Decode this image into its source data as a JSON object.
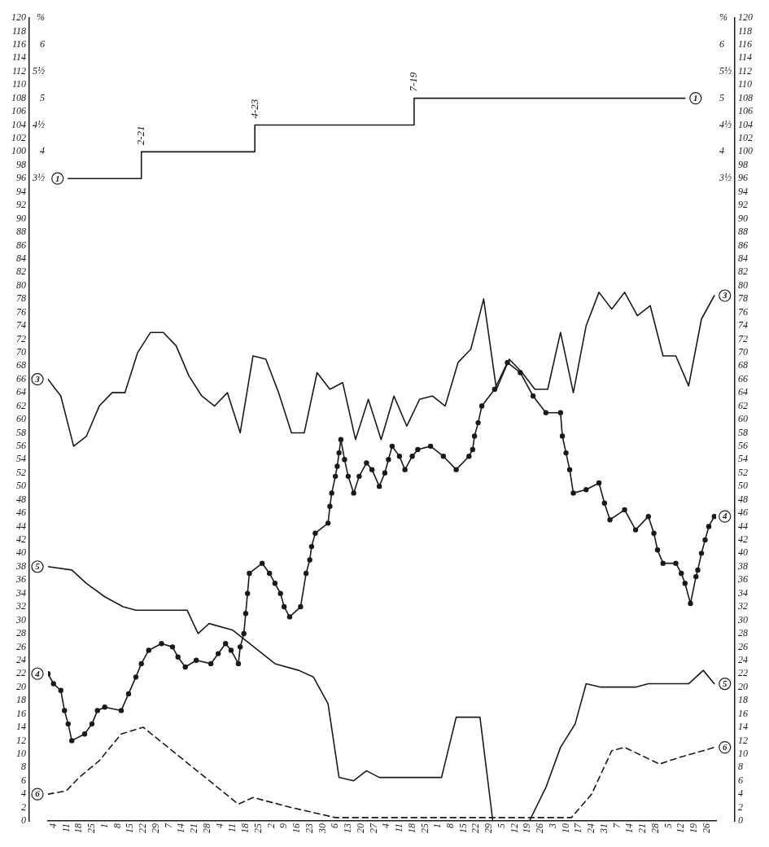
{
  "chart_data": {
    "type": "line",
    "xlim": [
      "--01-01",
      "--12-31"
    ],
    "xticks": [
      {
        "value": "--01-04",
        "label": "4"
      },
      {
        "value": "--01-11",
        "label": "11"
      },
      {
        "value": "--01-18",
        "label": "18"
      },
      {
        "value": "--01-25",
        "label": "25"
      },
      {
        "value": "--02-01",
        "label": "1"
      },
      {
        "value": "--02-08",
        "label": "8"
      },
      {
        "value": "--02-15",
        "label": "15"
      },
      {
        "value": "--02-22",
        "label": "22"
      },
      {
        "value": "--02-29",
        "label": "29"
      },
      {
        "value": "--03-07",
        "label": "7"
      },
      {
        "value": "--03-14",
        "label": "14"
      },
      {
        "value": "--03-21",
        "label": "21"
      },
      {
        "value": "--03-28",
        "label": "28"
      },
      {
        "value": "--04-04",
        "label": "4"
      },
      {
        "value": "--04-11",
        "label": "11"
      },
      {
        "value": "--04-18",
        "label": "18"
      },
      {
        "value": "--04-25",
        "label": "25"
      },
      {
        "value": "--05-02",
        "label": "2"
      },
      {
        "value": "--05-09",
        "label": "9"
      },
      {
        "value": "--05-16",
        "label": "16"
      },
      {
        "value": "--05-23",
        "label": "23"
      },
      {
        "value": "--05-30",
        "label": "30"
      },
      {
        "value": "--06-06",
        "label": "6"
      },
      {
        "value": "--06-13",
        "label": "13"
      },
      {
        "value": "--06-20",
        "label": "20"
      },
      {
        "value": "--06-27",
        "label": "27"
      },
      {
        "value": "--07-04",
        "label": "4"
      },
      {
        "value": "--07-11",
        "label": "11"
      },
      {
        "value": "--07-18",
        "label": "18"
      },
      {
        "value": "--07-25",
        "label": "25"
      },
      {
        "value": "--08-01",
        "label": "1"
      },
      {
        "value": "--08-08",
        "label": "8"
      },
      {
        "value": "--08-15",
        "label": "15"
      },
      {
        "value": "--08-22",
        "label": "22"
      },
      {
        "value": "--08-29",
        "label": "29"
      },
      {
        "value": "--09-05",
        "label": "5"
      },
      {
        "value": "--09-12",
        "label": "12"
      },
      {
        "value": "--09-19",
        "label": "19"
      },
      {
        "value": "--09-26",
        "label": "26"
      },
      {
        "value": "--10-03",
        "label": "3"
      },
      {
        "value": "--10-10",
        "label": "10"
      },
      {
        "value": "--10-17",
        "label": "17"
      },
      {
        "value": "--10-24",
        "label": "24"
      },
      {
        "value": "--10-31",
        "label": "31"
      },
      {
        "value": "--11-07",
        "label": "7"
      },
      {
        "value": "--11-14",
        "label": "14"
      },
      {
        "value": "--11-21",
        "label": "21"
      },
      {
        "value": "--11-28",
        "label": "28"
      },
      {
        "value": "--12-05",
        "label": "5"
      },
      {
        "value": "--12-12",
        "label": "12"
      },
      {
        "value": "--12-19",
        "label": "19"
      },
      {
        "value": "--12-26",
        "label": "26"
      }
    ],
    "ylim": [
      0,
      120
    ],
    "yticks": [
      0,
      2,
      4,
      6,
      8,
      10,
      12,
      14,
      16,
      18,
      20,
      22,
      24,
      26,
      28,
      30,
      32,
      34,
      36,
      38,
      40,
      42,
      44,
      46,
      48,
      50,
      52,
      54,
      56,
      58,
      60,
      62,
      64,
      66,
      68,
      70,
      72,
      74,
      76,
      78,
      80,
      82,
      84,
      86,
      88,
      90,
      92,
      94,
      96,
      98,
      100,
      102,
      104,
      106,
      108,
      110,
      112,
      114,
      116,
      118,
      120
    ],
    "y2lim": [
      0,
      120
    ],
    "y2ticks": [
      0,
      2,
      4,
      6,
      8,
      10,
      12,
      14,
      16,
      18,
      20,
      22,
      24,
      26,
      28,
      30,
      32,
      34,
      36,
      38,
      40,
      42,
      44,
      46,
      48,
      50,
      52,
      54,
      56,
      58,
      60,
      62,
      64,
      66,
      68,
      70,
      72,
      74,
      76,
      78,
      80,
      82,
      84,
      86,
      88,
      90,
      92,
      94,
      96,
      98,
      100,
      102,
      104,
      106,
      108,
      110,
      112,
      114,
      116,
      118,
      120
    ],
    "y3lim": [
      -8.5,
      6.5
    ],
    "y3ticks": [
      {
        "value": 3.5,
        "label": "3½"
      },
      4,
      {
        "value": 4.5,
        "label": "4½"
      },
      5,
      {
        "value": 5.5,
        "label": "5½"
      },
      6,
      {
        "value": 6.5,
        "label": "%"
      }
    ],
    "annotations": [
      {
        "text": "2-21",
        "x": "--02-21",
        "y": 100
      },
      {
        "text": "4-23",
        "x": "--04-23",
        "y": 104
      },
      {
        "text": "7-19",
        "x": "--07-19",
        "y": 108
      }
    ],
    "series": [
      {
        "name": "1",
        "type": "step",
        "axis": "y3",
        "color": "#1a1a1a",
        "x": [
          "--01-12",
          "--02-21",
          "--04-23",
          "--07-19",
          "--12-14"
        ],
        "values": [
          3.5,
          4,
          4.5,
          5,
          5
        ]
      },
      {
        "name": "3",
        "color": "#1a1a1a",
        "x": [
          "--01-01",
          "--01-08",
          "--01-15",
          "--01-22",
          "--01-29",
          "--02-05",
          "--02-12",
          "--02-19",
          "--02-26",
          "--03-04",
          "--03-11",
          "--03-18",
          "--03-25",
          "--04-01",
          "--04-08",
          "--04-15",
          "--04-22",
          "--04-29",
          "--05-06",
          "--05-13",
          "--05-20",
          "--05-27",
          "--06-03",
          "--06-10",
          "--06-17",
          "--06-24",
          "--07-01",
          "--07-08",
          "--07-15",
          "--07-22",
          "--07-29",
          "--08-05",
          "--08-12",
          "--08-19",
          "--08-26",
          "--09-02",
          "--09-09",
          "--09-16",
          "--09-23",
          "--09-30",
          "--10-07",
          "--10-14",
          "--10-21",
          "--10-28",
          "--11-04",
          "--11-11",
          "--11-18",
          "--11-25",
          "--12-02",
          "--12-09",
          "--12-16",
          "--12-23",
          "--12-30"
        ],
        "values": [
          66,
          63.5,
          56,
          57.5,
          62,
          64,
          64,
          70,
          73,
          73,
          71,
          66.5,
          63.5,
          62,
          64,
          58,
          69.5,
          69,
          64,
          58,
          58,
          67,
          64.5,
          65.5,
          57,
          63,
          57,
          63.5,
          59,
          63,
          63.5,
          62,
          68.5,
          70.5,
          78,
          64.5,
          69,
          67,
          64.5,
          64.5,
          73,
          64,
          74,
          79,
          76.5,
          79,
          75.5,
          77,
          69.5,
          69.5,
          65,
          75,
          78.5
        ]
      },
      {
        "name": "4",
        "marker": "circle",
        "color": "#1a1a1a",
        "x": [
          "--01-01",
          "--01-04",
          "--01-08",
          "--01-10",
          "--01-12",
          "--01-14",
          "--01-21",
          "--01-25",
          "--01-28",
          "--02-01",
          "--02-10",
          "--02-14",
          "--02-18",
          "--02-21",
          "--02-25",
          "--03-03",
          "--03-09",
          "--03-12",
          "--03-16",
          "--03-22",
          "--03-30",
          "--04-03",
          "--04-07",
          "--04-10",
          "--04-14",
          "--04-15",
          "--04-17",
          "--04-18",
          "--04-19",
          "--04-20",
          "--04-27",
          "--05-01",
          "--05-04",
          "--05-07",
          "--05-09",
          "--05-12",
          "--05-18",
          "--05-21",
          "--05-23",
          "--05-24",
          "--05-26",
          "--06-02",
          "--06-03",
          "--06-04",
          "--06-06",
          "--06-07",
          "--06-08",
          "--06-09",
          "--06-11",
          "--06-13",
          "--06-16",
          "--06-19",
          "--06-23",
          "--06-26",
          "--06-30",
          "--07-03",
          "--07-05",
          "--07-07",
          "--07-11",
          "--07-14",
          "--07-18",
          "--07-21",
          "--07-28",
          "--08-04",
          "--08-11",
          "--08-18",
          "--08-20",
          "--08-21",
          "--08-23",
          "--08-25",
          "--09-01",
          "--09-08",
          "--09-15",
          "--09-22",
          "--09-29",
          "--10-07",
          "--10-08",
          "--10-10",
          "--10-12",
          "--10-14",
          "--10-21",
          "--10-28",
          "--10-31",
          "--11-03",
          "--11-11",
          "--11-17",
          "--11-24",
          "--11-27",
          "--11-29",
          "--12-02",
          "--12-09",
          "--12-12",
          "--12-14",
          "--12-17",
          "--12-20",
          "--12-21",
          "--12-23",
          "--12-25",
          "--12-27",
          "--12-30"
        ],
        "values": [
          22,
          20.5,
          19.5,
          16.5,
          14.5,
          12,
          13,
          14.5,
          16.5,
          17,
          16.5,
          19,
          21.5,
          23.5,
          25.5,
          26.5,
          26,
          24.5,
          23,
          24,
          23.5,
          25,
          26.5,
          25.5,
          23.5,
          26,
          28,
          31,
          34,
          37,
          38.5,
          37,
          35.5,
          34,
          32,
          30.5,
          32,
          37,
          39,
          41,
          43,
          44.5,
          47,
          49,
          51.5,
          53,
          55,
          57,
          54,
          51.5,
          49,
          51.5,
          53.5,
          52.5,
          50,
          52,
          54,
          56,
          54.5,
          52.5,
          54.5,
          55.5,
          56,
          54.5,
          52.5,
          54.5,
          55.5,
          57.5,
          59.5,
          62,
          64.5,
          68.5,
          67,
          63.5,
          61,
          61,
          57.5,
          55,
          52.5,
          49,
          49.5,
          50.5,
          47.5,
          45,
          46.5,
          43.5,
          45.5,
          43,
          40.5,
          38.5,
          38.5,
          37,
          35.5,
          32.5,
          36.5,
          37.5,
          40,
          42,
          44,
          45.5
        ]
      },
      {
        "name": "5",
        "color": "#1a1a1a",
        "x": [
          "--01-01",
          "--01-14",
          "--01-22",
          "--02-01",
          "--02-11",
          "--02-18",
          "--03-17",
          "--03-23",
          "--03-29",
          "--04-11",
          "--05-04",
          "--05-17",
          "--05-25",
          "--06-02",
          "--06-08",
          "--06-16",
          "--06-23",
          "--06-30",
          "--08-03",
          "--08-11",
          "--08-24",
          "--08-31",
          "--09-20",
          "--09-29",
          "--10-07",
          "--10-15",
          "--10-21",
          "--10-29",
          "--11-17",
          "--11-24",
          "--12-16",
          "--12-24",
          "--12-30"
        ],
        "values": [
          38,
          37.5,
          35.5,
          33.5,
          32,
          31.5,
          31.5,
          28,
          29.5,
          28.5,
          23.5,
          22.5,
          21.5,
          17.5,
          6.5,
          6,
          7.5,
          6.5,
          6.5,
          15.5,
          15.5,
          0,
          0,
          5,
          11,
          14.5,
          20.5,
          20,
          20,
          20.5,
          20.5,
          22.5,
          20.5
        ]
      },
      {
        "name": "6",
        "line_style": "dashed",
        "color": "#1a1a1a",
        "x": [
          "--01-01",
          "--01-11",
          "--01-18",
          "--01-29",
          "--02-10",
          "--02-22",
          "--04-14",
          "--04-22",
          "--05-13",
          "--06-06",
          "--10-13",
          "--10-24",
          "--11-04",
          "--11-11",
          "--11-30",
          "--12-11",
          "--12-24",
          "--12-30"
        ],
        "values": [
          4,
          4.5,
          6.5,
          9,
          13,
          14,
          2.5,
          3.5,
          2,
          0.5,
          0.5,
          4,
          10.5,
          11,
          8.5,
          9.5,
          10.5,
          11
        ]
      }
    ]
  }
}
